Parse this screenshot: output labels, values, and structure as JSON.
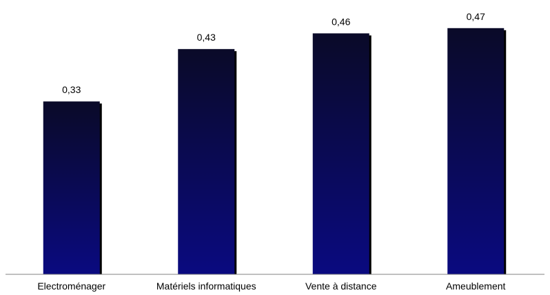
{
  "chart_data": {
    "type": "bar",
    "title": "",
    "xlabel": "",
    "ylabel": "",
    "categories": [
      "Electroménager",
      "Matériels informatiques",
      "Vente à distance",
      "Ameublement"
    ],
    "values": [
      0.33,
      0.43,
      0.46,
      0.47
    ],
    "data_labels": [
      "0,33",
      "0,43",
      "0,46",
      "0,47"
    ],
    "ylim": [
      0,
      0.5
    ],
    "grid": false,
    "legend": "none",
    "colors": {
      "bar_top": "#0a0a28",
      "bar_bottom": "#0a0a80",
      "shadow": "#000000",
      "axis": "#808080"
    }
  }
}
